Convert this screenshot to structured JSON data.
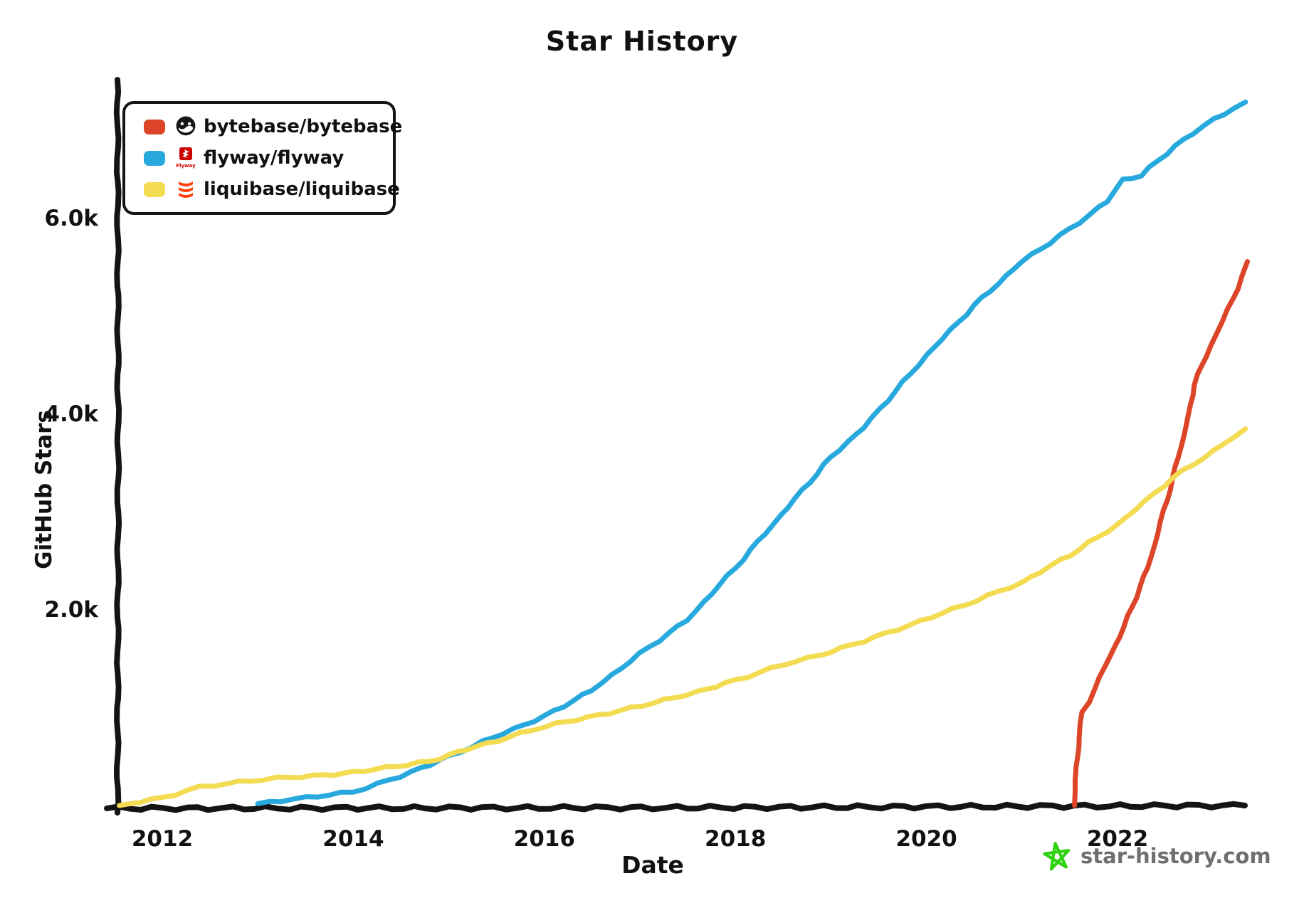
{
  "title": "Star History",
  "axes": {
    "x_label": "Date",
    "y_label": "GitHub Stars",
    "x_ticks": [
      "2012",
      "2014",
      "2016",
      "2018",
      "2020",
      "2022"
    ],
    "y_ticks": [
      "2.0k",
      "4.0k",
      "6.0k"
    ]
  },
  "legend": {
    "items": [
      {
        "label": "bytebase/bytebase",
        "color": "#dd4528",
        "logo": "bytebase-logo"
      },
      {
        "label": "flyway/flyway",
        "color": "#28a9dd",
        "logo": "flyway-logo",
        "logo_caption": "Flyway"
      },
      {
        "label": "liquibase/liquibase",
        "color": "#f3db52",
        "logo": "liquibase-logo"
      }
    ]
  },
  "watermark": {
    "text": "star-history.com",
    "text_color": "#6f6f6f",
    "star_color": "#2ed20e"
  },
  "chart_data": {
    "type": "line",
    "title": "Star History",
    "xlabel": "Date",
    "ylabel": "GitHub Stars",
    "x_unit": "year",
    "y_unit": "github_stars",
    "x_range": [
      2011.5,
      2023.4
    ],
    "y_range": [
      0,
      7400
    ],
    "grid": false,
    "legend_position": "top-left",
    "line_style": "hand-drawn",
    "series": [
      {
        "name": "bytebase/bytebase",
        "color": "#dd4528",
        "points": [
          [
            2021.55,
            0
          ],
          [
            2021.57,
            400
          ],
          [
            2021.6,
            700
          ],
          [
            2021.63,
            950
          ],
          [
            2021.7,
            1070
          ],
          [
            2021.87,
            1420
          ],
          [
            2022.07,
            1830
          ],
          [
            2022.32,
            2440
          ],
          [
            2022.42,
            2780
          ],
          [
            2022.58,
            3350
          ],
          [
            2022.75,
            4000
          ],
          [
            2022.8,
            4300
          ],
          [
            2022.97,
            4690
          ],
          [
            2023.1,
            4950
          ],
          [
            2023.21,
            5180
          ],
          [
            2023.3,
            5400
          ],
          [
            2023.36,
            5560
          ]
        ]
      },
      {
        "name": "flyway/flyway",
        "color": "#28a9dd",
        "points": [
          [
            2013.0,
            20
          ],
          [
            2013.5,
            80
          ],
          [
            2014.0,
            140
          ],
          [
            2014.5,
            300
          ],
          [
            2015.0,
            500
          ],
          [
            2015.35,
            650
          ],
          [
            2016.0,
            910
          ],
          [
            2016.5,
            1180
          ],
          [
            2017.0,
            1550
          ],
          [
            2017.5,
            1900
          ],
          [
            2018.0,
            2430
          ],
          [
            2018.55,
            3050
          ],
          [
            2019.0,
            3560
          ],
          [
            2019.35,
            3870
          ],
          [
            2020.0,
            4600
          ],
          [
            2020.5,
            5110
          ],
          [
            2021.0,
            5560
          ],
          [
            2021.5,
            5890
          ],
          [
            2021.9,
            6180
          ],
          [
            2022.05,
            6390
          ],
          [
            2022.25,
            6440
          ],
          [
            2022.6,
            6740
          ],
          [
            2023.0,
            7010
          ],
          [
            2023.34,
            7190
          ]
        ]
      },
      {
        "name": "liquibase/liquibase",
        "color": "#f3db52",
        "points": [
          [
            2011.55,
            0
          ],
          [
            2012.0,
            80
          ],
          [
            2012.4,
            190
          ],
          [
            2012.8,
            240
          ],
          [
            2013.2,
            280
          ],
          [
            2013.7,
            310
          ],
          [
            2014.0,
            340
          ],
          [
            2014.8,
            450
          ],
          [
            2015.2,
            580
          ],
          [
            2015.5,
            660
          ],
          [
            2016.0,
            810
          ],
          [
            2016.8,
            970
          ],
          [
            2017.6,
            1160
          ],
          [
            2018.0,
            1280
          ],
          [
            2018.5,
            1440
          ],
          [
            2019.0,
            1570
          ],
          [
            2019.7,
            1800
          ],
          [
            2020.4,
            2050
          ],
          [
            2021.0,
            2280
          ],
          [
            2021.5,
            2560
          ],
          [
            2022.0,
            2870
          ],
          [
            2022.58,
            3350
          ],
          [
            2023.0,
            3620
          ],
          [
            2023.34,
            3850
          ]
        ]
      }
    ]
  }
}
